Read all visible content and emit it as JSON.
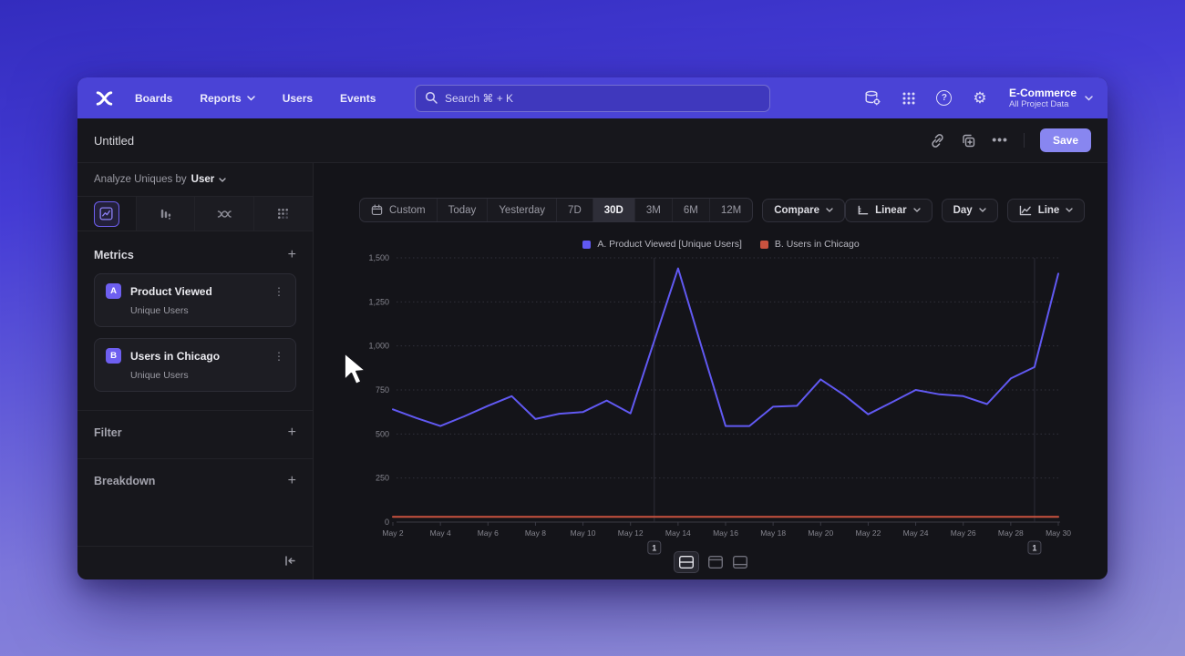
{
  "nav": {
    "logo_name": "mixpanel-logo",
    "items": [
      {
        "label": "Boards",
        "chevron": false
      },
      {
        "label": "Reports",
        "chevron": true
      },
      {
        "label": "Users",
        "chevron": false
      },
      {
        "label": "Events",
        "chevron": false
      }
    ],
    "search": {
      "placeholder": "Search  ⌘ + K"
    },
    "right_icons": [
      "data-settings-icon",
      "apps-grid-icon",
      "help-icon",
      "settings-gear-icon"
    ],
    "project": {
      "name": "E-Commerce",
      "subtitle": "All Project Data"
    }
  },
  "header": {
    "title": "Untitled",
    "save_label": "Save",
    "icons": [
      "link-icon",
      "duplicate-icon",
      "more-options-icon"
    ]
  },
  "sidebar": {
    "analyze": {
      "prefix": "Analyze Uniques by",
      "value": "User"
    },
    "tabs": [
      "insights-line-chart",
      "bar-chart",
      "flows",
      "retention-dots"
    ],
    "metrics": {
      "title": "Metrics",
      "items": [
        {
          "badge": "A",
          "name": "Product Viewed",
          "subtitle": "Unique Users"
        },
        {
          "badge": "B",
          "name": "Users in Chicago",
          "subtitle": "Unique Users"
        }
      ]
    },
    "filter": {
      "title": "Filter"
    },
    "breakdown": {
      "title": "Breakdown"
    }
  },
  "toolbar": {
    "ranges": [
      "Custom",
      "Today",
      "Yesterday",
      "7D",
      "30D",
      "3M",
      "6M",
      "12M"
    ],
    "active_range": "30D",
    "compare_label": "Compare",
    "scale_label": "Linear",
    "granularity_label": "Day",
    "chart_type_label": "Line"
  },
  "colors": {
    "nav_accent": "#4a43d6",
    "save_button": "#8886f0",
    "metric_badge": "#6e5ff0",
    "series_a": "#6159f2",
    "series_b": "#c9523f"
  },
  "chart_data": {
    "type": "line",
    "title": "",
    "xlabel": "",
    "ylabel": "",
    "ylim": [
      0,
      1500
    ],
    "grid": "horizontal-dashed",
    "legend_position": "top-center",
    "y_ticks": [
      0,
      250,
      500,
      750,
      1000,
      1250,
      1500
    ],
    "y_tick_labels": [
      "0",
      "250",
      "500",
      "750",
      "1,000",
      "1,250",
      "1,500"
    ],
    "x": [
      "May 2",
      "May 3",
      "May 4",
      "May 5",
      "May 6",
      "May 7",
      "May 8",
      "May 9",
      "May 10",
      "May 11",
      "May 12",
      "May 13",
      "May 14",
      "May 15",
      "May 16",
      "May 17",
      "May 18",
      "May 19",
      "May 20",
      "May 21",
      "May 22",
      "May 23",
      "May 24",
      "May 25",
      "May 26",
      "May 27",
      "May 28",
      "May 29",
      "May 30"
    ],
    "x_tick_labels": [
      "May 2",
      "May 4",
      "May 6",
      "May 8",
      "May 10",
      "May 12",
      "May 14",
      "May 16",
      "May 18",
      "May 20",
      "May 22",
      "May 24",
      "May 26",
      "May 28",
      "May 30"
    ],
    "series": [
      {
        "name": "A. Product Viewed [Unique Users]",
        "color": "#6159f2",
        "values": [
          640,
          590,
          545,
          600,
          660,
          715,
          585,
          615,
          625,
          690,
          617,
          1030,
          1440,
          990,
          545,
          545,
          655,
          660,
          810,
          720,
          612,
          680,
          750,
          725,
          715,
          670,
          815,
          880,
          1410
        ]
      },
      {
        "name": "B. Users in Chicago",
        "color": "#c9523f",
        "values": [
          30,
          30,
          30,
          30,
          30,
          30,
          30,
          30,
          30,
          30,
          30,
          30,
          30,
          30,
          30,
          30,
          30,
          30,
          30,
          30,
          30,
          30,
          30,
          30,
          30,
          30,
          30,
          30,
          30
        ]
      }
    ],
    "annotations": [
      {
        "label": "1",
        "x": "May 13"
      },
      {
        "label": "1",
        "x": "May 29"
      }
    ]
  }
}
